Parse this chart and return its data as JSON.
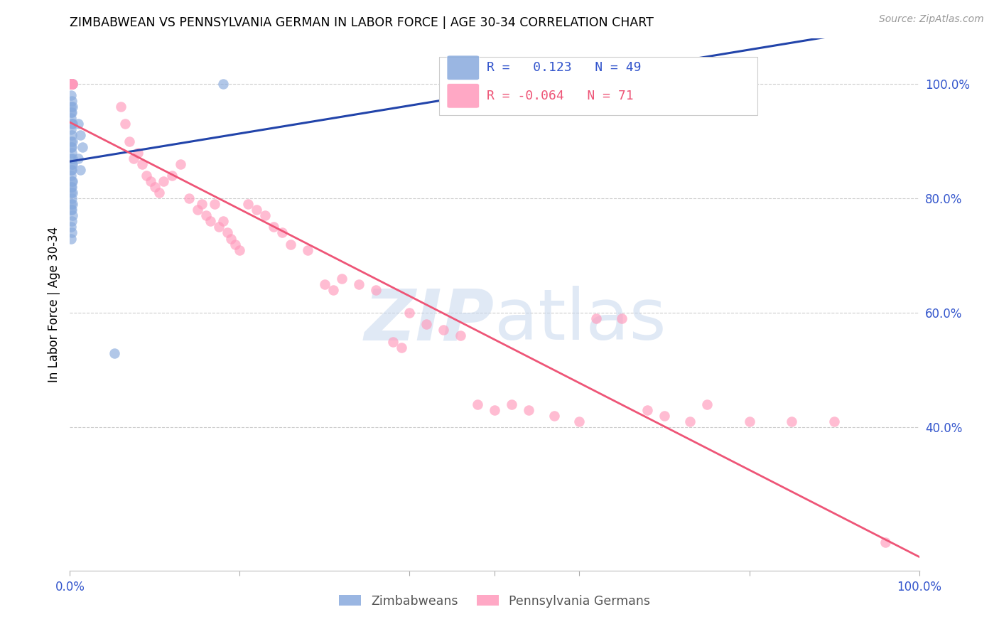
{
  "title": "ZIMBABWEAN VS PENNSYLVANIA GERMAN IN LABOR FORCE | AGE 30-34 CORRELATION CHART",
  "source": "Source: ZipAtlas.com",
  "ylabel": "In Labor Force | Age 30-34",
  "legend_blue_r": "0.123",
  "legend_blue_n": "49",
  "legend_pink_r": "-0.064",
  "legend_pink_n": "71",
  "blue_color": "#88AADD",
  "pink_color": "#FF99BB",
  "blue_line_color": "#2244AA",
  "pink_line_color": "#EE5577",
  "right_ytick_values": [
    0.4,
    0.6,
    0.8,
    1.0
  ],
  "right_ytick_labels": [
    "40.0%",
    "60.0%",
    "80.0%",
    "100.0%"
  ],
  "xlim": [
    0.0,
    1.0
  ],
  "ylim": [
    0.15,
    1.08
  ],
  "blue_x": [
    0.002,
    0.001,
    0.003,
    0.001,
    0.002,
    0.001,
    0.003,
    0.002,
    0.001,
    0.001,
    0.002,
    0.003,
    0.001,
    0.002,
    0.001,
    0.003,
    0.002,
    0.001,
    0.002,
    0.003,
    0.001,
    0.002,
    0.003,
    0.001,
    0.002,
    0.001,
    0.003,
    0.002,
    0.001,
    0.002,
    0.003,
    0.001,
    0.002,
    0.001,
    0.003,
    0.002,
    0.001,
    0.003,
    0.002,
    0.001,
    0.01,
    0.012,
    0.015,
    0.01,
    0.012,
    0.18,
    0.002,
    0.001,
    0.052
  ],
  "blue_y": [
    1.0,
    1.0,
    1.0,
    0.98,
    0.97,
    0.96,
    0.96,
    0.95,
    0.95,
    0.94,
    0.93,
    0.93,
    0.92,
    0.91,
    0.9,
    0.9,
    0.89,
    0.89,
    0.88,
    0.87,
    0.87,
    0.86,
    0.86,
    0.85,
    0.85,
    0.84,
    0.83,
    0.83,
    0.82,
    0.82,
    0.81,
    0.81,
    0.8,
    0.79,
    0.79,
    0.78,
    0.78,
    0.77,
    0.76,
    0.75,
    0.93,
    0.91,
    0.89,
    0.87,
    0.85,
    1.0,
    0.74,
    0.73,
    0.53
  ],
  "pink_x": [
    0.001,
    0.002,
    0.001,
    0.003,
    0.001,
    0.002,
    0.001,
    0.003,
    0.002,
    0.001,
    0.002,
    0.001,
    0.06,
    0.065,
    0.07,
    0.075,
    0.08,
    0.085,
    0.09,
    0.095,
    0.1,
    0.105,
    0.11,
    0.12,
    0.13,
    0.14,
    0.15,
    0.155,
    0.16,
    0.165,
    0.17,
    0.175,
    0.18,
    0.185,
    0.19,
    0.195,
    0.2,
    0.21,
    0.22,
    0.23,
    0.24,
    0.25,
    0.26,
    0.28,
    0.3,
    0.31,
    0.32,
    0.34,
    0.36,
    0.38,
    0.39,
    0.4,
    0.42,
    0.44,
    0.46,
    0.48,
    0.5,
    0.52,
    0.54,
    0.57,
    0.6,
    0.62,
    0.65,
    0.68,
    0.7,
    0.73,
    0.75,
    0.8,
    0.85,
    0.9,
    0.96
  ],
  "pink_y": [
    1.0,
    1.0,
    1.0,
    1.0,
    1.0,
    1.0,
    1.0,
    1.0,
    1.0,
    1.0,
    1.0,
    1.0,
    0.96,
    0.93,
    0.9,
    0.87,
    0.88,
    0.86,
    0.84,
    0.83,
    0.82,
    0.81,
    0.83,
    0.84,
    0.86,
    0.8,
    0.78,
    0.79,
    0.77,
    0.76,
    0.79,
    0.75,
    0.76,
    0.74,
    0.73,
    0.72,
    0.71,
    0.79,
    0.78,
    0.77,
    0.75,
    0.74,
    0.72,
    0.71,
    0.65,
    0.64,
    0.66,
    0.65,
    0.64,
    0.55,
    0.54,
    0.6,
    0.58,
    0.57,
    0.56,
    0.44,
    0.43,
    0.44,
    0.43,
    0.42,
    0.41,
    0.59,
    0.59,
    0.43,
    0.42,
    0.41,
    0.44,
    0.41,
    0.41,
    0.41,
    0.2
  ]
}
